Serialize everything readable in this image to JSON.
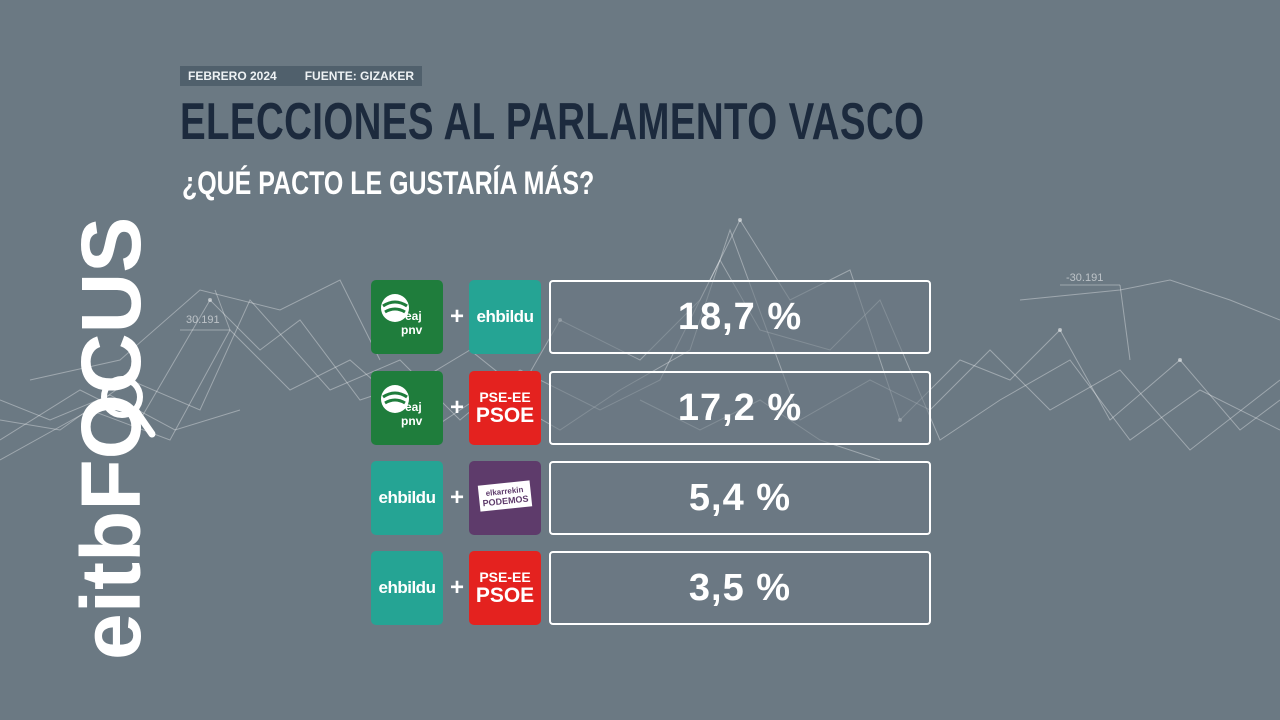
{
  "meta": {
    "date": "FEBRERO 2024",
    "source": "FUENTE: GIZAKER"
  },
  "title": "ELECCIONES AL PARLAMENTO VASCO",
  "subtitle": "¿QUÉ PACTO LE GUSTARÍA MÁS?",
  "brand": "eitbFOCUS",
  "background_labels": [
    "30.191",
    "-30.191"
  ],
  "parties": {
    "pnv": {
      "line1": "eaj",
      "line2": "pnv",
      "color": "#1f7d3c",
      "icon": "pnv-logo-icon"
    },
    "bildu": {
      "name": "ehbildu",
      "color": "#25a494"
    },
    "psoe": {
      "line1": "PSE-EE",
      "line2": "PSOE",
      "color": "#e4221f"
    },
    "podemos": {
      "line1": "elkarrekin",
      "line2": "PODEMOS",
      "color": "#5e3b6b"
    }
  },
  "chart_data": {
    "type": "table",
    "title": "ELECCIONES AL PARLAMENTO VASCO",
    "subtitle": "¿QUÉ PACTO LE GUSTARÍA MÁS?",
    "categories": [
      "EAJ-PNV + EH Bildu",
      "EAJ-PNV + PSE-EE PSOE",
      "EH Bildu + Elkarrekin Podemos",
      "EH Bildu + PSE-EE PSOE"
    ],
    "values": [
      18.7,
      17.2,
      5.4,
      3.5
    ],
    "labels": [
      "18,7 %",
      "17,2 %",
      "5,4 %",
      "3,5 %"
    ],
    "unit": "%"
  },
  "rows": [
    {
      "left": "pnv",
      "right": "bildu",
      "plus": "+",
      "value_label": "18,7 %"
    },
    {
      "left": "pnv",
      "right": "psoe",
      "plus": "+",
      "value_label": "17,2 %"
    },
    {
      "left": "bildu",
      "right": "podemos",
      "plus": "+",
      "value_label": "5,4 %"
    },
    {
      "left": "bildu",
      "right": "psoe",
      "plus": "+",
      "value_label": "3,5 %"
    }
  ]
}
